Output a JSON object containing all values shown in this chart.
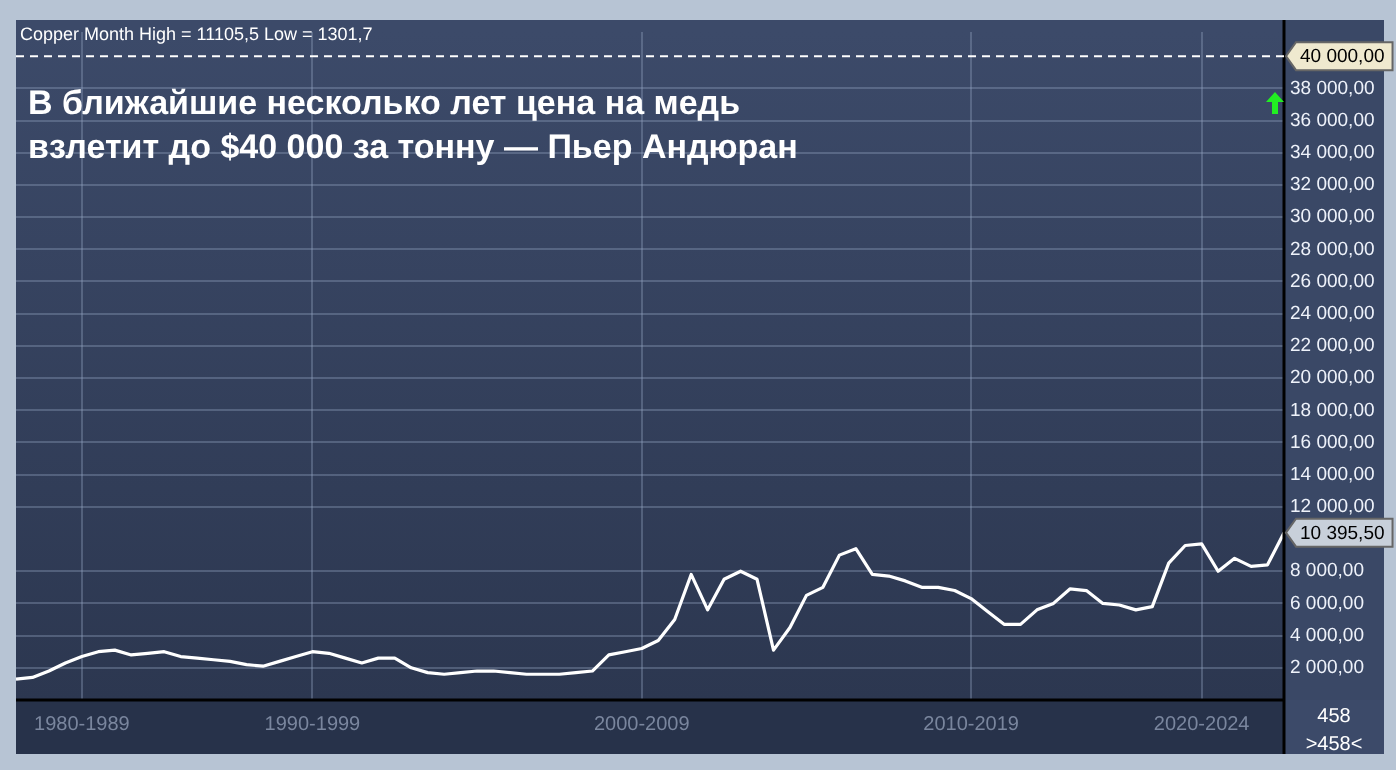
{
  "chart_data": {
    "type": "line",
    "title": "Copper Month High = 11105,5 Low = 1301,7",
    "categories": [
      null,
      null,
      null,
      null,
      "1980-1989",
      null,
      null,
      null,
      null,
      null,
      null,
      null,
      null,
      null,
      null,
      null,
      null,
      null,
      "1990-1999",
      null,
      null,
      null,
      null,
      null,
      null,
      null,
      null,
      null,
      null,
      null,
      null,
      null,
      null,
      null,
      null,
      null,
      null,
      null,
      "2000-2009",
      null,
      null,
      null,
      null,
      null,
      null,
      null,
      null,
      null,
      null,
      null,
      null,
      null,
      null,
      null,
      null,
      null,
      null,
      null,
      "2010-2019",
      null,
      null,
      null,
      null,
      null,
      null,
      null,
      null,
      null,
      null,
      null,
      null,
      null,
      "2020-2024",
      null,
      null,
      null,
      null,
      null
    ],
    "series": [
      {
        "color": "#ffffff",
        "values": [
          1300,
          1400,
          1800,
          2300,
          2700,
          3000,
          3100,
          2800,
          2900,
          3000,
          2700,
          2600,
          2500,
          2400,
          2200,
          2100,
          2400,
          2700,
          3000,
          2900,
          2600,
          2300,
          2600,
          2600,
          2000,
          1700,
          1600,
          1700,
          1800,
          1800,
          1700,
          1600,
          1600,
          1600,
          1700,
          1800,
          2800,
          3000,
          3200,
          3700,
          5000,
          7800,
          5600,
          7500,
          8000,
          7500,
          3100,
          4500,
          6500,
          7000,
          9000,
          9400,
          7800,
          7700,
          7400,
          7000,
          7000,
          6800,
          6300,
          5500,
          4700,
          4700,
          5600,
          6000,
          6900,
          6800,
          6000,
          5900,
          5600,
          5800,
          8500,
          9600,
          9700,
          8000,
          8800,
          8300,
          8400,
          10395.5
        ]
      }
    ],
    "ylim": [
      0,
      41500
    ],
    "yticks": [
      {
        "value": 2000,
        "label": "2 000,00"
      },
      {
        "value": 4000,
        "label": "4 000,00"
      },
      {
        "value": 6000,
        "label": "6 000,00"
      },
      {
        "value": 8000,
        "label": "8 000,00"
      },
      {
        "value": 12000,
        "label": "12 000,00"
      },
      {
        "value": 14000,
        "label": "14 000,00"
      },
      {
        "value": 16000,
        "label": "16 000,00"
      },
      {
        "value": 18000,
        "label": "18 000,00"
      },
      {
        "value": 20000,
        "label": "20 000,00"
      },
      {
        "value": 22000,
        "label": "22 000,00"
      },
      {
        "value": 24000,
        "label": "24 000,00"
      },
      {
        "value": 26000,
        "label": "26 000,00"
      },
      {
        "value": 28000,
        "label": "28 000,00"
      },
      {
        "value": 30000,
        "label": "30 000,00"
      },
      {
        "value": 32000,
        "label": "32 000,00"
      },
      {
        "value": 34000,
        "label": "34 000,00"
      },
      {
        "value": 36000,
        "label": "36 000,00"
      },
      {
        "value": 38000,
        "label": "38 000,00"
      }
    ],
    "ref_lines": [
      {
        "axis": "y",
        "value": 40000,
        "label": "40 000,00",
        "color": "#ffffff",
        "line_style": "dashed"
      }
    ],
    "annotations": [
      "В ближайшие несколько лет цена на медь взлетит до $40 000 за тонну — Пьер Андюран",
      "10 395,50",
      "458",
      ">458<"
    ],
    "grid": true,
    "legend": false,
    "marker": "none",
    "line_style": "solid"
  }
}
